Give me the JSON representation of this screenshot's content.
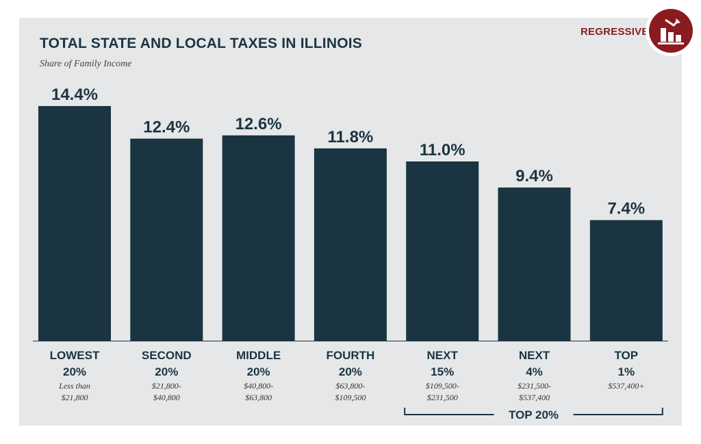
{
  "badge": {
    "label": "REGRESSIVE",
    "icon": "regressive-chart-icon",
    "color": "#8a1b1f"
  },
  "colors": {
    "bar": "#1b3442",
    "panel": "#e6e7e8"
  },
  "chart_data": {
    "type": "bar",
    "title": "TOTAL STATE AND LOCAL TAXES IN ILLINOIS",
    "subtitle": "Share of Family Income",
    "xlabel": "",
    "ylabel": "",
    "ylim": [
      0,
      14.4
    ],
    "grid": false,
    "categories": [
      {
        "line1": "LOWEST",
        "line2": "20%",
        "range1": "Less than",
        "range2": "$21,800"
      },
      {
        "line1": "SECOND",
        "line2": "20%",
        "range1": "$21,800-",
        "range2": "$40,800"
      },
      {
        "line1": "MIDDLE",
        "line2": "20%",
        "range1": "$40,800-",
        "range2": "$63,800"
      },
      {
        "line1": "FOURTH",
        "line2": "20%",
        "range1": "$63,800-",
        "range2": "$109,500"
      },
      {
        "line1": "NEXT",
        "line2": "15%",
        "range1": "$109,500-",
        "range2": "$231,500"
      },
      {
        "line1": "NEXT",
        "line2": "4%",
        "range1": "$231,500-",
        "range2": "$537,400"
      },
      {
        "line1": "TOP",
        "line2": "1%",
        "range1": "$537,400+",
        "range2": ""
      }
    ],
    "values": [
      14.4,
      12.4,
      12.6,
      11.8,
      11.0,
      9.4,
      7.4
    ],
    "value_labels": [
      "14.4%",
      "12.4%",
      "12.6%",
      "11.8%",
      "11.0%",
      "9.4%",
      "7.4%"
    ],
    "group_label": {
      "text": "TOP 20%",
      "spans": [
        4,
        6
      ]
    }
  }
}
